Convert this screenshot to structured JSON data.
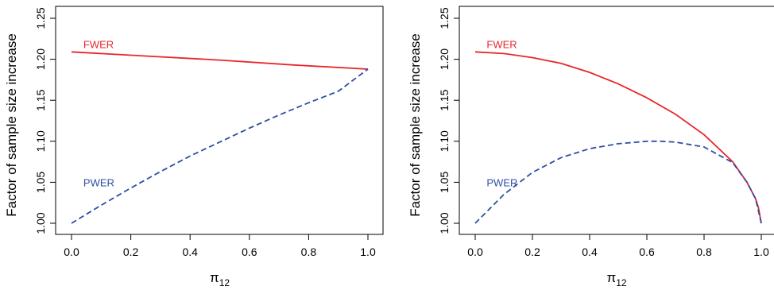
{
  "colors": {
    "fwer": "#e8262a",
    "pwer": "#2f4fa1",
    "axis": "#000000"
  },
  "chart_data": [
    {
      "type": "line",
      "xlabel": "π",
      "xlabel_sub": "12",
      "ylabel": "Factor of sample size increase",
      "xlim": [
        0.0,
        1.0
      ],
      "ylim": [
        1.0,
        1.25
      ],
      "x_ticks": [
        "0.0",
        "0.2",
        "0.4",
        "0.6",
        "0.8",
        "1.0"
      ],
      "y_ticks": [
        "1.00",
        "1.05",
        "1.10",
        "1.15",
        "1.20",
        "1.25"
      ],
      "grid": false,
      "series": [
        {
          "name": "FWER",
          "style": "solid",
          "color": "#e8262a",
          "x": [
            0.0,
            0.25,
            0.5,
            0.75,
            1.0
          ],
          "y": [
            1.209,
            1.204,
            1.199,
            1.193,
            1.188
          ]
        },
        {
          "name": "PWER",
          "style": "dashed",
          "color": "#2f4fa1",
          "x": [
            0.0,
            0.1,
            0.2,
            0.3,
            0.4,
            0.5,
            0.6,
            0.7,
            0.8,
            0.9,
            1.0
          ],
          "y": [
            1.0,
            1.022,
            1.043,
            1.063,
            1.082,
            1.099,
            1.116,
            1.132,
            1.147,
            1.161,
            1.188
          ]
        }
      ]
    },
    {
      "type": "line",
      "xlabel": "π",
      "xlabel_sub": "12",
      "ylabel": "Factor of sample size increase",
      "xlim": [
        0.0,
        1.0
      ],
      "ylim": [
        1.0,
        1.25
      ],
      "x_ticks": [
        "0.0",
        "0.2",
        "0.4",
        "0.6",
        "0.8",
        "1.0"
      ],
      "y_ticks": [
        "1.00",
        "1.05",
        "1.10",
        "1.15",
        "1.20",
        "1.25"
      ],
      "grid": false,
      "series": [
        {
          "name": "FWER",
          "style": "solid",
          "color": "#e8262a",
          "x": [
            0.0,
            0.1,
            0.2,
            0.3,
            0.4,
            0.5,
            0.6,
            0.7,
            0.8,
            0.9,
            0.95,
            0.98,
            0.99,
            1.0
          ],
          "y": [
            1.209,
            1.207,
            1.202,
            1.195,
            1.184,
            1.17,
            1.153,
            1.133,
            1.108,
            1.075,
            1.05,
            1.03,
            1.019,
            1.0
          ]
        },
        {
          "name": "PWER",
          "style": "dashed",
          "color": "#2f4fa1",
          "x": [
            0.0,
            0.1,
            0.2,
            0.3,
            0.4,
            0.5,
            0.6,
            0.65,
            0.7,
            0.8,
            0.9,
            0.95,
            0.98,
            1.0
          ],
          "y": [
            1.0,
            1.035,
            1.062,
            1.08,
            1.091,
            1.097,
            1.1,
            1.1,
            1.099,
            1.093,
            1.074,
            1.05,
            1.03,
            1.0
          ]
        }
      ]
    }
  ]
}
